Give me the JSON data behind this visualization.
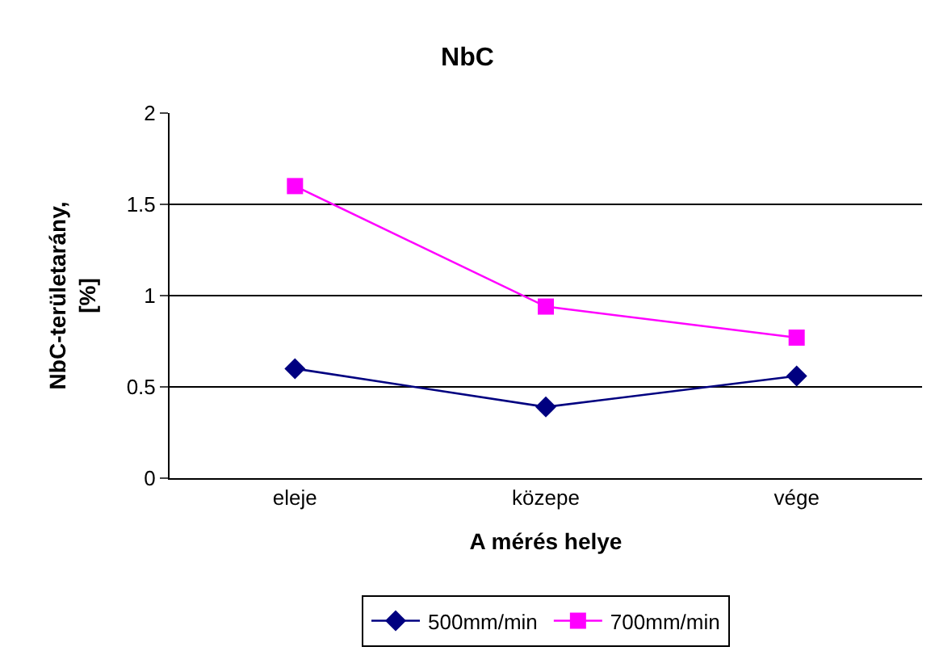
{
  "chart_data": {
    "type": "line",
    "title": "NbC",
    "xlabel": "A mérés helye",
    "ylabel": "NbC-területarány,\n[%]",
    "categories": [
      "eleje",
      "közepe",
      "vége"
    ],
    "series": [
      {
        "name": "500mm/min",
        "color": "#000080",
        "marker": "diamond",
        "values": [
          0.6,
          0.39,
          0.56
        ]
      },
      {
        "name": "700mm/min",
        "color": "#ff00ff",
        "marker": "square",
        "values": [
          1.6,
          0.94,
          0.77
        ]
      }
    ],
    "ylim": [
      0,
      2
    ],
    "yticks": [
      0,
      0.5,
      1,
      1.5,
      2
    ],
    "grid": "y",
    "legend": "bottom",
    "line_style": "solid"
  }
}
